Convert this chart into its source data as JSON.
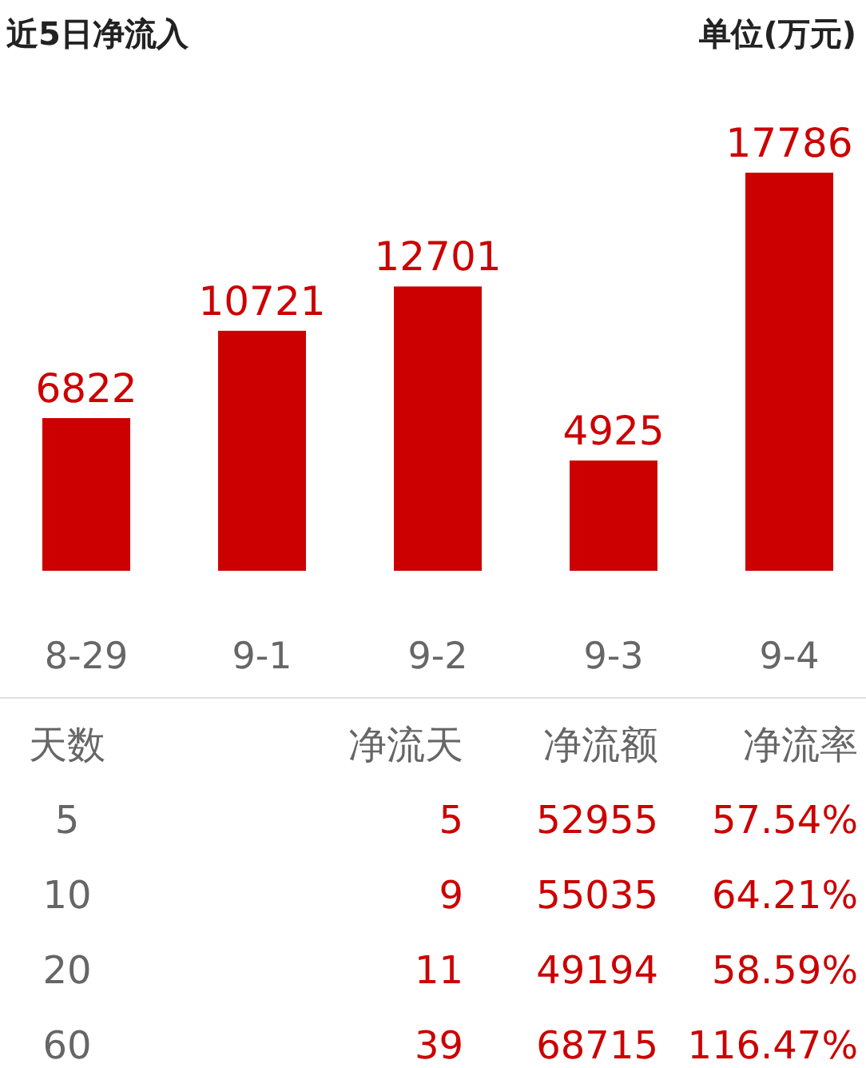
{
  "chart_data": [
    {
      "type": "bar",
      "title": "近5日净流入",
      "annotations": [
        "单位(万元)"
      ],
      "categories": [
        "8-29",
        "9-1",
        "9-2",
        "9-3",
        "9-4"
      ],
      "values": [
        6822,
        10721,
        12701,
        4925,
        17786
      ],
      "color": "#cc0000",
      "data_labels": true
    },
    {
      "type": "other",
      "annotations": [
        "天数",
        "净流天",
        "净流额",
        "净流率",
        "5",
        "5",
        "52955",
        "57.54%",
        "10",
        "9",
        "55035",
        "64.21%",
        "20",
        "11",
        "49194",
        "58.59%",
        "60",
        "39",
        "68715",
        "116.47%"
      ]
    }
  ]
}
